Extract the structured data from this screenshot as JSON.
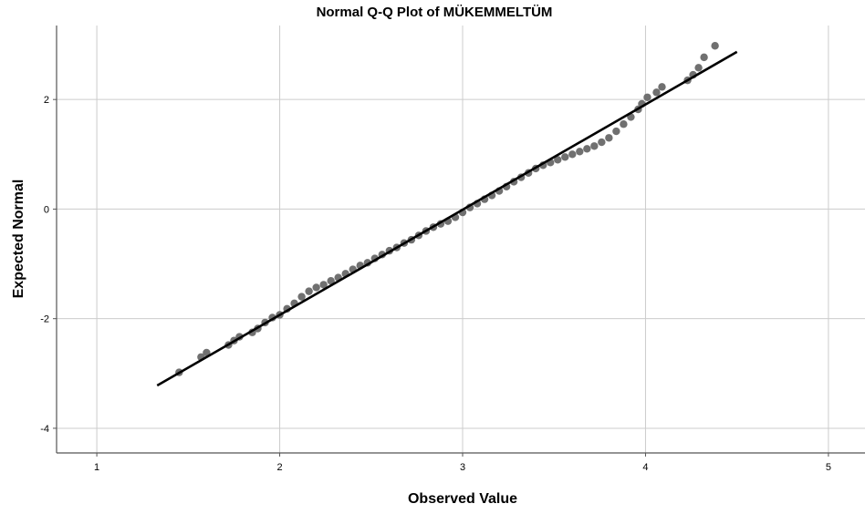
{
  "chart_data": {
    "type": "scatter",
    "title": "Normal Q-Q Plot of MÜKEMMELTÜM",
    "xlabel": "Observed Value",
    "ylabel": "Expected Normal",
    "xlim": [
      0.78,
      5.2
    ],
    "ylim": [
      -4.45,
      3.35
    ],
    "xticks": [
      1,
      2,
      3,
      4,
      5
    ],
    "yticks": [
      2,
      0,
      -2,
      -4
    ],
    "grid": true,
    "colors": {
      "points": "#707070",
      "line": "#000000",
      "grid": "#cccccc",
      "axis": "#555555"
    },
    "reference_line": {
      "x": [
        1.33,
        4.5
      ],
      "y": [
        -3.22,
        2.87
      ]
    },
    "points": {
      "x": [
        1.45,
        1.57,
        1.6,
        1.72,
        1.75,
        1.78,
        1.85,
        1.88,
        1.92,
        1.96,
        2.0,
        2.04,
        2.08,
        2.12,
        2.16,
        2.2,
        2.24,
        2.28,
        2.32,
        2.36,
        2.4,
        2.44,
        2.48,
        2.52,
        2.56,
        2.6,
        2.64,
        2.68,
        2.72,
        2.76,
        2.8,
        2.84,
        2.88,
        2.92,
        2.96,
        3.0,
        3.04,
        3.08,
        3.12,
        3.16,
        3.2,
        3.24,
        3.28,
        3.32,
        3.36,
        3.4,
        3.44,
        3.48,
        3.52,
        3.56,
        3.6,
        3.64,
        3.68,
        3.72,
        3.76,
        3.8,
        3.84,
        3.88,
        3.92,
        3.96,
        3.98,
        4.01,
        4.06,
        4.09,
        4.23,
        4.26,
        4.29,
        4.32,
        4.38
      ],
      "y": [
        -2.98,
        -2.7,
        -2.62,
        -2.48,
        -2.4,
        -2.33,
        -2.25,
        -2.18,
        -2.07,
        -1.98,
        -1.93,
        -1.82,
        -1.72,
        -1.6,
        -1.5,
        -1.43,
        -1.38,
        -1.31,
        -1.25,
        -1.18,
        -1.1,
        -1.03,
        -0.98,
        -0.9,
        -0.83,
        -0.76,
        -0.7,
        -0.62,
        -0.56,
        -0.48,
        -0.4,
        -0.33,
        -0.27,
        -0.22,
        -0.15,
        -0.06,
        0.03,
        0.1,
        0.18,
        0.25,
        0.33,
        0.41,
        0.5,
        0.58,
        0.66,
        0.74,
        0.8,
        0.85,
        0.9,
        0.95,
        1.0,
        1.05,
        1.1,
        1.15,
        1.22,
        1.3,
        1.42,
        1.55,
        1.68,
        1.82,
        1.92,
        2.04,
        2.13,
        2.23,
        2.35,
        2.45,
        2.58,
        2.77,
        2.98
      ]
    }
  }
}
